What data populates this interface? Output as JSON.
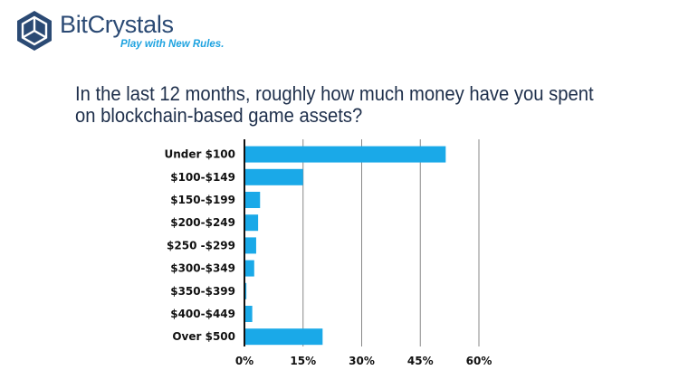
{
  "brand": {
    "name": "BitCrystals",
    "tagline": "Play with New Rules."
  },
  "question": "In the last 12 months, roughly how much money have you spent on blockchain-based game assets?",
  "colors": {
    "bar": "#1aa9e8",
    "brand_dark": "#2b4a74",
    "brand_accent": "#1fa3e0",
    "gridline": "#888888",
    "axis": "#111111"
  },
  "chart_data": {
    "type": "bar",
    "orientation": "horizontal",
    "title": "In the last 12 months, roughly how much money have you spent on blockchain-based game assets?",
    "categories": [
      "Under $100",
      "$100-$149",
      "$150-$199",
      "$200-$249",
      "$250 -$299",
      "$300-$349",
      "$350-$399",
      "$400-$449",
      "Over $500"
    ],
    "values": [
      51.5,
      15,
      4,
      3.5,
      3,
      2.5,
      0.5,
      2,
      20
    ],
    "xlim": [
      0,
      60
    ],
    "xticks": [
      0,
      15,
      30,
      45,
      60
    ],
    "xtick_labels": [
      "0%",
      "15%",
      "30%",
      "45%",
      "60%"
    ],
    "grid": true,
    "xlabel": "",
    "ylabel": ""
  }
}
